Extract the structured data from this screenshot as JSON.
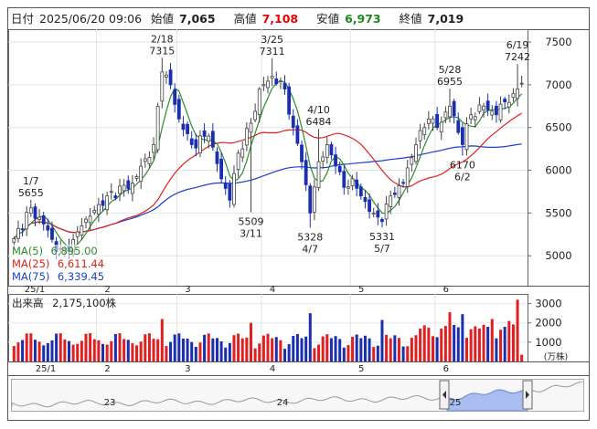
{
  "header": {
    "date_label": "日付",
    "datetime": "2025/06/20 09:06",
    "open_label": "始値",
    "open": "7,065",
    "high_label": "高値",
    "high": "7,108",
    "low_label": "安値",
    "low": "6,973",
    "close_label": "終値",
    "close": "7,019"
  },
  "ma_legend": [
    {
      "name": "MA(5)",
      "value": "6,895.00",
      "color": "#2e8b2e"
    },
    {
      "name": "MA(25)",
      "value": "6,611.44",
      "color": "#e02020"
    },
    {
      "name": "MA(75)",
      "value": "6,339.45",
      "color": "#1a3fd0"
    }
  ],
  "volume_legend": {
    "label": "出来高",
    "value": "2,175,100株"
  },
  "volume_unit": "(万株)",
  "timeline_labels": [
    "23",
    "24",
    "25"
  ],
  "colors": {
    "up": "#e02020",
    "down": "#1a2fb0",
    "ma5": "#2e8b2e",
    "ma25": "#e02020",
    "ma75": "#1a3fd0",
    "nav_fill": "#a9bdf0"
  },
  "chart_data": {
    "type": "candlestick",
    "x_labels": [
      "25/1",
      "2",
      "3",
      "4",
      "5",
      "6"
    ],
    "y_ticks": [
      5000,
      5500,
      6000,
      6500,
      7000,
      7500
    ],
    "ylim": [
      4650,
      7650
    ],
    "volume_ticks": [
      1000,
      2000,
      3000
    ],
    "volume_ylim": [
      0,
      3500
    ],
    "annotations": [
      {
        "date": "1/7",
        "value": 5655,
        "position": "above"
      },
      {
        "date": "2/18",
        "value": 7315,
        "position": "above"
      },
      {
        "date": "3/25",
        "value": 7311,
        "position": "above"
      },
      {
        "date": "4/10",
        "value": 6484,
        "position": "above"
      },
      {
        "date": "5/28",
        "value": 6955,
        "position": "above"
      },
      {
        "date": "6/19",
        "value": 7242,
        "position": "above"
      },
      {
        "date": "3/11",
        "value": 5509,
        "position": "below"
      },
      {
        "date": "4/7",
        "value": 5328,
        "position": "below"
      },
      {
        "date": "5/7",
        "value": 5331,
        "position": "below"
      },
      {
        "date": "6/2",
        "value": 6170,
        "position": "below"
      }
    ],
    "anchors": [
      {
        "i": 0,
        "close": 5200
      },
      {
        "i": 4,
        "close": 5560
      },
      {
        "i": 8,
        "close": 5300
      },
      {
        "i": 10,
        "close": 5050
      },
      {
        "i": 13,
        "close": 5050
      },
      {
        "i": 16,
        "close": 5350
      },
      {
        "i": 22,
        "close": 5700
      },
      {
        "i": 28,
        "close": 5850
      },
      {
        "i": 33,
        "close": 6300
      },
      {
        "i": 35,
        "close": 7150
      },
      {
        "i": 37,
        "close": 7000
      },
      {
        "i": 39,
        "close": 6600
      },
      {
        "i": 42,
        "close": 6300
      },
      {
        "i": 46,
        "close": 6400
      },
      {
        "i": 49,
        "close": 5900
      },
      {
        "i": 51,
        "close": 5650
      },
      {
        "i": 53,
        "close": 6200
      },
      {
        "i": 56,
        "close": 6550
      },
      {
        "i": 58,
        "close": 6950
      },
      {
        "i": 61,
        "close": 7100
      },
      {
        "i": 64,
        "close": 6950
      },
      {
        "i": 66,
        "close": 6500
      },
      {
        "i": 68,
        "close": 6100
      },
      {
        "i": 70,
        "close": 5500
      },
      {
        "i": 72,
        "close": 6100
      },
      {
        "i": 74,
        "close": 6300
      },
      {
        "i": 76,
        "close": 6050
      },
      {
        "i": 78,
        "close": 5800
      },
      {
        "i": 80,
        "close": 5900
      },
      {
        "i": 82,
        "close": 5700
      },
      {
        "i": 85,
        "close": 5500
      },
      {
        "i": 87,
        "close": 5400
      },
      {
        "i": 89,
        "close": 5700
      },
      {
        "i": 92,
        "close": 5850
      },
      {
        "i": 95,
        "close": 6300
      },
      {
        "i": 98,
        "close": 6600
      },
      {
        "i": 100,
        "close": 6500
      },
      {
        "i": 103,
        "close": 6750
      },
      {
        "i": 106,
        "close": 6300
      },
      {
        "i": 108,
        "close": 6650
      },
      {
        "i": 111,
        "close": 6750
      },
      {
        "i": 114,
        "close": 6650
      },
      {
        "i": 116,
        "close": 6800
      },
      {
        "i": 118,
        "close": 6900
      },
      {
        "i": 120,
        "close": 7019
      }
    ]
  }
}
